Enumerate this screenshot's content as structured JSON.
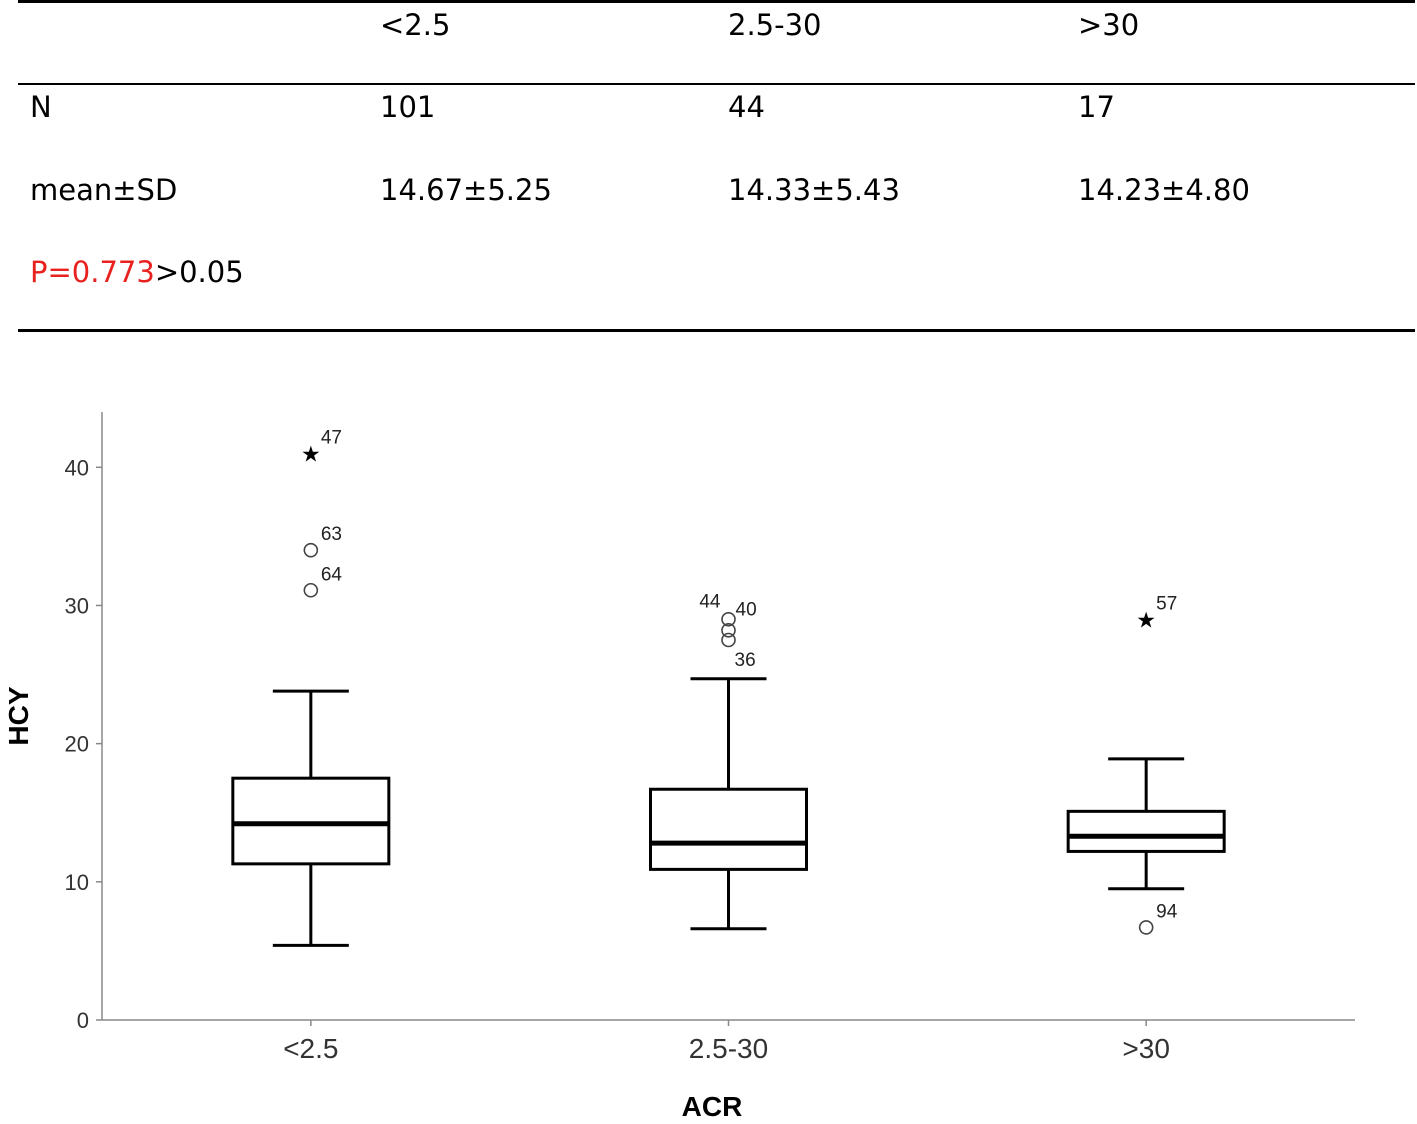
{
  "table": {
    "header": [
      "",
      "<2.5",
      "2.5-30",
      ">30"
    ],
    "rows": [
      {
        "label": "N",
        "values": [
          "101",
          "44",
          "17"
        ]
      },
      {
        "label": "mean±SD",
        "values": [
          "14.67±5.25",
          "14.33±5.43",
          "14.23±4.80"
        ]
      }
    ],
    "p_value": "P=0.773",
    "p_compare": ">0.05",
    "p_color": "#e8201e"
  },
  "chart_data": {
    "type": "boxplot",
    "xlabel": "ACR",
    "ylabel": "HCY",
    "ylim": [
      0,
      44
    ],
    "yticks": [
      0,
      10,
      20,
      30,
      40
    ],
    "categories": [
      "<2.5",
      "2.5-30",
      ">30"
    ],
    "boxes": [
      {
        "category": "<2.5",
        "whisker_low": 5.4,
        "q1": 11.3,
        "median": 14.2,
        "q3": 17.5,
        "whisker_high": 23.8,
        "outliers": [
          {
            "value": 41.0,
            "label": "47",
            "marker": "star"
          },
          {
            "value": 34.0,
            "label": "63",
            "marker": "circle"
          },
          {
            "value": 31.1,
            "label": "64",
            "marker": "circle"
          }
        ]
      },
      {
        "category": "2.5-30",
        "whisker_low": 6.6,
        "q1": 10.9,
        "median": 12.8,
        "q3": 16.7,
        "whisker_high": 24.7,
        "outliers": [
          {
            "value": 29.0,
            "label": "44",
            "marker": "circle"
          },
          {
            "value": 28.2,
            "label": "40",
            "marker": "circle"
          },
          {
            "value": 27.5,
            "label": "36",
            "marker": "circle"
          }
        ]
      },
      {
        "category": ">30",
        "whisker_low": 9.5,
        "q1": 12.2,
        "median": 13.3,
        "q3": 15.1,
        "whisker_high": 18.9,
        "outliers": [
          {
            "value": 29.0,
            "label": "57",
            "marker": "star"
          },
          {
            "value": 6.7,
            "label": "94",
            "marker": "circle"
          }
        ]
      }
    ],
    "grid": false
  }
}
